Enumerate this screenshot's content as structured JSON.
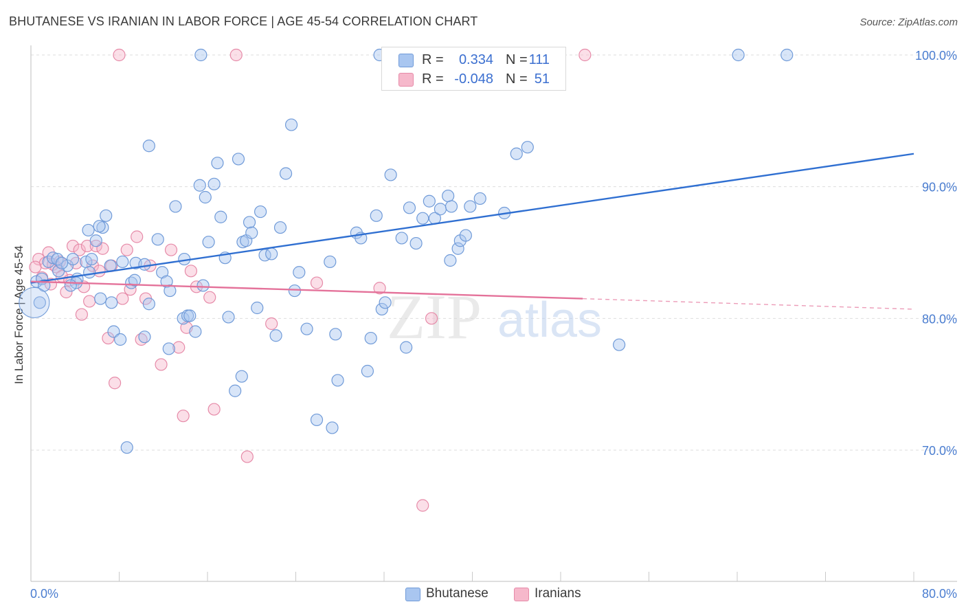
{
  "header": {
    "title": "BHUTANESE VS IRANIAN IN LABOR FORCE | AGE 45-54 CORRELATION CHART",
    "source": "Source: ZipAtlas.com"
  },
  "legend": {
    "rows": [
      {
        "r_label": "R =",
        "r_value": "0.334",
        "n_label": "N =",
        "n_value": "111"
      },
      {
        "r_label": "R =",
        "r_value": "-0.048",
        "n_label": "N =",
        "n_value": "51"
      }
    ],
    "bottom": [
      "Bhutanese",
      "Iranians"
    ]
  },
  "watermark": {
    "zip": "ZIP",
    "atlas": "atlas"
  },
  "colors": {
    "bhutanese_fill": "#a9c6f0",
    "bhutanese_stroke": "#6f9ad8",
    "bhutanese_line": "#2f6fd1",
    "iranians_fill": "#f6b8cb",
    "iranians_stroke": "#e68aa8",
    "iranians_line": "#e4729a",
    "tick_label": "#4a7dd0",
    "grid": "#dddddd"
  },
  "chart_data": {
    "type": "scatter",
    "title": "BHUTANESE VS IRANIAN IN LABOR FORCE | AGE 45-54 CORRELATION CHART",
    "xlabel": "",
    "ylabel": "In Labor Force | Age 45-54",
    "xlim": [
      0,
      80
    ],
    "ylim": [
      61,
      101
    ],
    "x_tick_labels": [
      "0.0%",
      "80.0%"
    ],
    "y_ticks": [
      70,
      80,
      90,
      100
    ],
    "y_tick_labels": [
      "70.0%",
      "80.0%",
      "90.0%",
      "100.0%"
    ],
    "grid": true,
    "legend_position": "top-center",
    "series": [
      {
        "name": "Bhutanese",
        "r": 0.334,
        "n": 111,
        "trend": {
          "x0": 0,
          "y0": 82.7,
          "x1": 80,
          "y1": 92.5
        },
        "points": [
          [
            0.5,
            82.8
          ],
          [
            0.8,
            81.2
          ],
          [
            1.0,
            83.0
          ],
          [
            1.2,
            82.5
          ],
          [
            1.6,
            84.3
          ],
          [
            2.0,
            84.6
          ],
          [
            2.5,
            83.6
          ],
          [
            3.3,
            84.0
          ],
          [
            3.8,
            84.5
          ],
          [
            4.2,
            83.0
          ],
          [
            2.4,
            84.5
          ],
          [
            4.1,
            82.7
          ],
          [
            5.0,
            84.3
          ],
          [
            5.2,
            86.7
          ],
          [
            5.5,
            84.5
          ],
          [
            5.3,
            83.5
          ],
          [
            5.9,
            85.9
          ],
          [
            6.5,
            86.9
          ],
          [
            6.2,
            87.0
          ],
          [
            6.8,
            87.8
          ],
          [
            6.3,
            81.5
          ],
          [
            7.3,
            81.2
          ],
          [
            7.5,
            79.0
          ],
          [
            8.3,
            84.3
          ],
          [
            8.1,
            78.4
          ],
          [
            8.7,
            70.2
          ],
          [
            9.1,
            82.7
          ],
          [
            9.4,
            82.9
          ],
          [
            9.5,
            84.2
          ],
          [
            10.3,
            84.1
          ],
          [
            10.3,
            78.6
          ],
          [
            10.7,
            81.1
          ],
          [
            10.7,
            93.1
          ],
          [
            11.5,
            86.0
          ],
          [
            11.9,
            83.5
          ],
          [
            12.5,
            77.7
          ],
          [
            12.3,
            82.8
          ],
          [
            12.6,
            82.1
          ],
          [
            13.1,
            88.5
          ],
          [
            13.8,
            80.0
          ],
          [
            13.9,
            84.5
          ],
          [
            14.2,
            80.2
          ],
          [
            14.4,
            80.2
          ],
          [
            14.9,
            79.0
          ],
          [
            15.3,
            90.1
          ],
          [
            15.6,
            82.5
          ],
          [
            15.8,
            89.2
          ],
          [
            16.1,
            85.8
          ],
          [
            16.6,
            90.2
          ],
          [
            16.9,
            91.8
          ],
          [
            17.2,
            87.7
          ],
          [
            17.6,
            84.6
          ],
          [
            17.9,
            80.1
          ],
          [
            18.5,
            74.5
          ],
          [
            18.8,
            92.1
          ],
          [
            19.1,
            75.6
          ],
          [
            19.2,
            85.8
          ],
          [
            19.5,
            85.9
          ],
          [
            19.8,
            87.3
          ],
          [
            20.0,
            86.5
          ],
          [
            20.5,
            80.8
          ],
          [
            20.8,
            88.1
          ],
          [
            21.2,
            84.8
          ],
          [
            21.8,
            84.9
          ],
          [
            22.2,
            78.7
          ],
          [
            22.6,
            86.9
          ],
          [
            23.1,
            91.0
          ],
          [
            23.6,
            94.7
          ],
          [
            23.9,
            82.1
          ],
          [
            24.3,
            83.5
          ],
          [
            25.0,
            79.2
          ],
          [
            25.9,
            72.3
          ],
          [
            27.1,
            84.3
          ],
          [
            27.3,
            71.7
          ],
          [
            27.6,
            78.8
          ],
          [
            27.8,
            75.3
          ],
          [
            29.5,
            86.5
          ],
          [
            29.9,
            86.1
          ],
          [
            30.5,
            76.0
          ],
          [
            30.8,
            78.5
          ],
          [
            31.3,
            87.8
          ],
          [
            31.8,
            80.7
          ],
          [
            32.1,
            81.2
          ],
          [
            32.6,
            90.9
          ],
          [
            33.6,
            86.1
          ],
          [
            34.0,
            77.8
          ],
          [
            34.3,
            88.4
          ],
          [
            34.9,
            85.7
          ],
          [
            35.5,
            87.6
          ],
          [
            36.1,
            88.9
          ],
          [
            36.6,
            87.6
          ],
          [
            37.1,
            88.3
          ],
          [
            37.8,
            89.3
          ],
          [
            38.0,
            84.4
          ],
          [
            38.1,
            88.5
          ],
          [
            38.7,
            85.3
          ],
          [
            38.9,
            85.9
          ],
          [
            39.4,
            86.3
          ],
          [
            39.8,
            88.5
          ],
          [
            40.7,
            89.1
          ],
          [
            42.9,
            88.0
          ],
          [
            44.0,
            92.5
          ],
          [
            45.0,
            93.0
          ],
          [
            53.3,
            78.0
          ],
          [
            15.4,
            100.0
          ],
          [
            31.6,
            100.0
          ],
          [
            64.1,
            100.0
          ],
          [
            68.5,
            100.0
          ],
          [
            7.2,
            84.0
          ],
          [
            3.6,
            82.5
          ],
          [
            2.8,
            84.2
          ]
        ]
      },
      {
        "name": "Iranians",
        "r": -0.048,
        "n": 51,
        "trend": {
          "x0": 0,
          "y0": 82.8,
          "x1": 50,
          "y1": 81.5
        },
        "trend_dashed": {
          "x0": 50,
          "y0": 81.5,
          "x1": 80,
          "y1": 80.7
        },
        "points": [
          [
            0.7,
            84.5
          ],
          [
            1.0,
            83.1
          ],
          [
            1.3,
            84.2
          ],
          [
            1.6,
            85.0
          ],
          [
            1.8,
            82.6
          ],
          [
            2.0,
            84.1
          ],
          [
            2.3,
            83.9
          ],
          [
            2.6,
            84.3
          ],
          [
            2.8,
            83.2
          ],
          [
            3.2,
            82.0
          ],
          [
            3.5,
            82.9
          ],
          [
            3.8,
            85.5
          ],
          [
            4.1,
            84.2
          ],
          [
            4.4,
            85.2
          ],
          [
            4.6,
            80.3
          ],
          [
            4.8,
            82.4
          ],
          [
            5.1,
            85.5
          ],
          [
            5.3,
            81.3
          ],
          [
            5.6,
            84.0
          ],
          [
            5.9,
            85.5
          ],
          [
            6.2,
            83.6
          ],
          [
            6.5,
            85.3
          ],
          [
            7.0,
            78.5
          ],
          [
            7.3,
            84.0
          ],
          [
            7.6,
            75.1
          ],
          [
            8.3,
            81.5
          ],
          [
            8.7,
            85.2
          ],
          [
            9.0,
            82.2
          ],
          [
            9.6,
            86.2
          ],
          [
            10.0,
            78.4
          ],
          [
            10.4,
            81.5
          ],
          [
            10.8,
            84.0
          ],
          [
            11.8,
            76.5
          ],
          [
            12.7,
            85.2
          ],
          [
            13.4,
            77.8
          ],
          [
            13.8,
            72.6
          ],
          [
            14.1,
            79.3
          ],
          [
            14.5,
            83.6
          ],
          [
            15.0,
            82.4
          ],
          [
            16.2,
            81.6
          ],
          [
            16.6,
            73.1
          ],
          [
            19.6,
            69.5
          ],
          [
            21.8,
            79.6
          ],
          [
            25.9,
            82.7
          ],
          [
            31.6,
            82.3
          ],
          [
            35.5,
            65.8
          ],
          [
            36.3,
            80.0
          ],
          [
            8.0,
            100.0
          ],
          [
            18.6,
            100.0
          ],
          [
            50.2,
            100.0
          ],
          [
            0.4,
            83.9
          ]
        ]
      }
    ]
  }
}
